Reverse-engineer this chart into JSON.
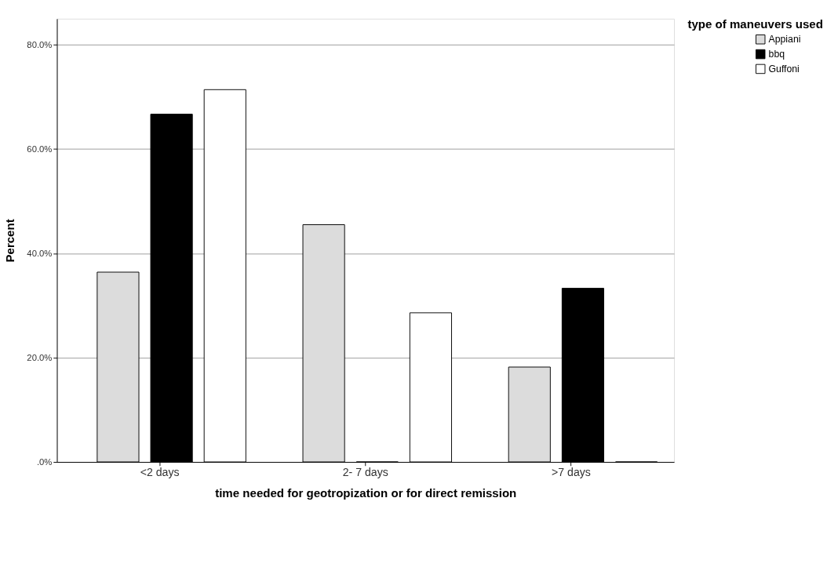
{
  "chart_data": {
    "type": "bar",
    "xlabel": "time needed for geotropization or for direct remission",
    "ylabel": "Percent",
    "legend_title": "type of maneuvers used",
    "categories": [
      "<2 days",
      "2- 7 days",
      ">7 days"
    ],
    "series": [
      {
        "name": "Appiani",
        "color": "#dcdcdc",
        "values": [
          36.4,
          45.5,
          18.2
        ]
      },
      {
        "name": "bbq",
        "color": "#000000",
        "values": [
          66.7,
          0,
          33.3
        ]
      },
      {
        "name": "Guffoni",
        "color": "#ffffff",
        "values": [
          71.4,
          28.6,
          0
        ]
      }
    ],
    "ylim": [
      0,
      85
    ],
    "yticks": [
      {
        "value": 0,
        "label": ".0%"
      },
      {
        "value": 20,
        "label": "20.0%"
      },
      {
        "value": 40,
        "label": "40.0%"
      },
      {
        "value": 60,
        "label": "60.0%"
      },
      {
        "value": 80,
        "label": "80.0%"
      }
    ],
    "grid": "y",
    "legend": "top right"
  }
}
